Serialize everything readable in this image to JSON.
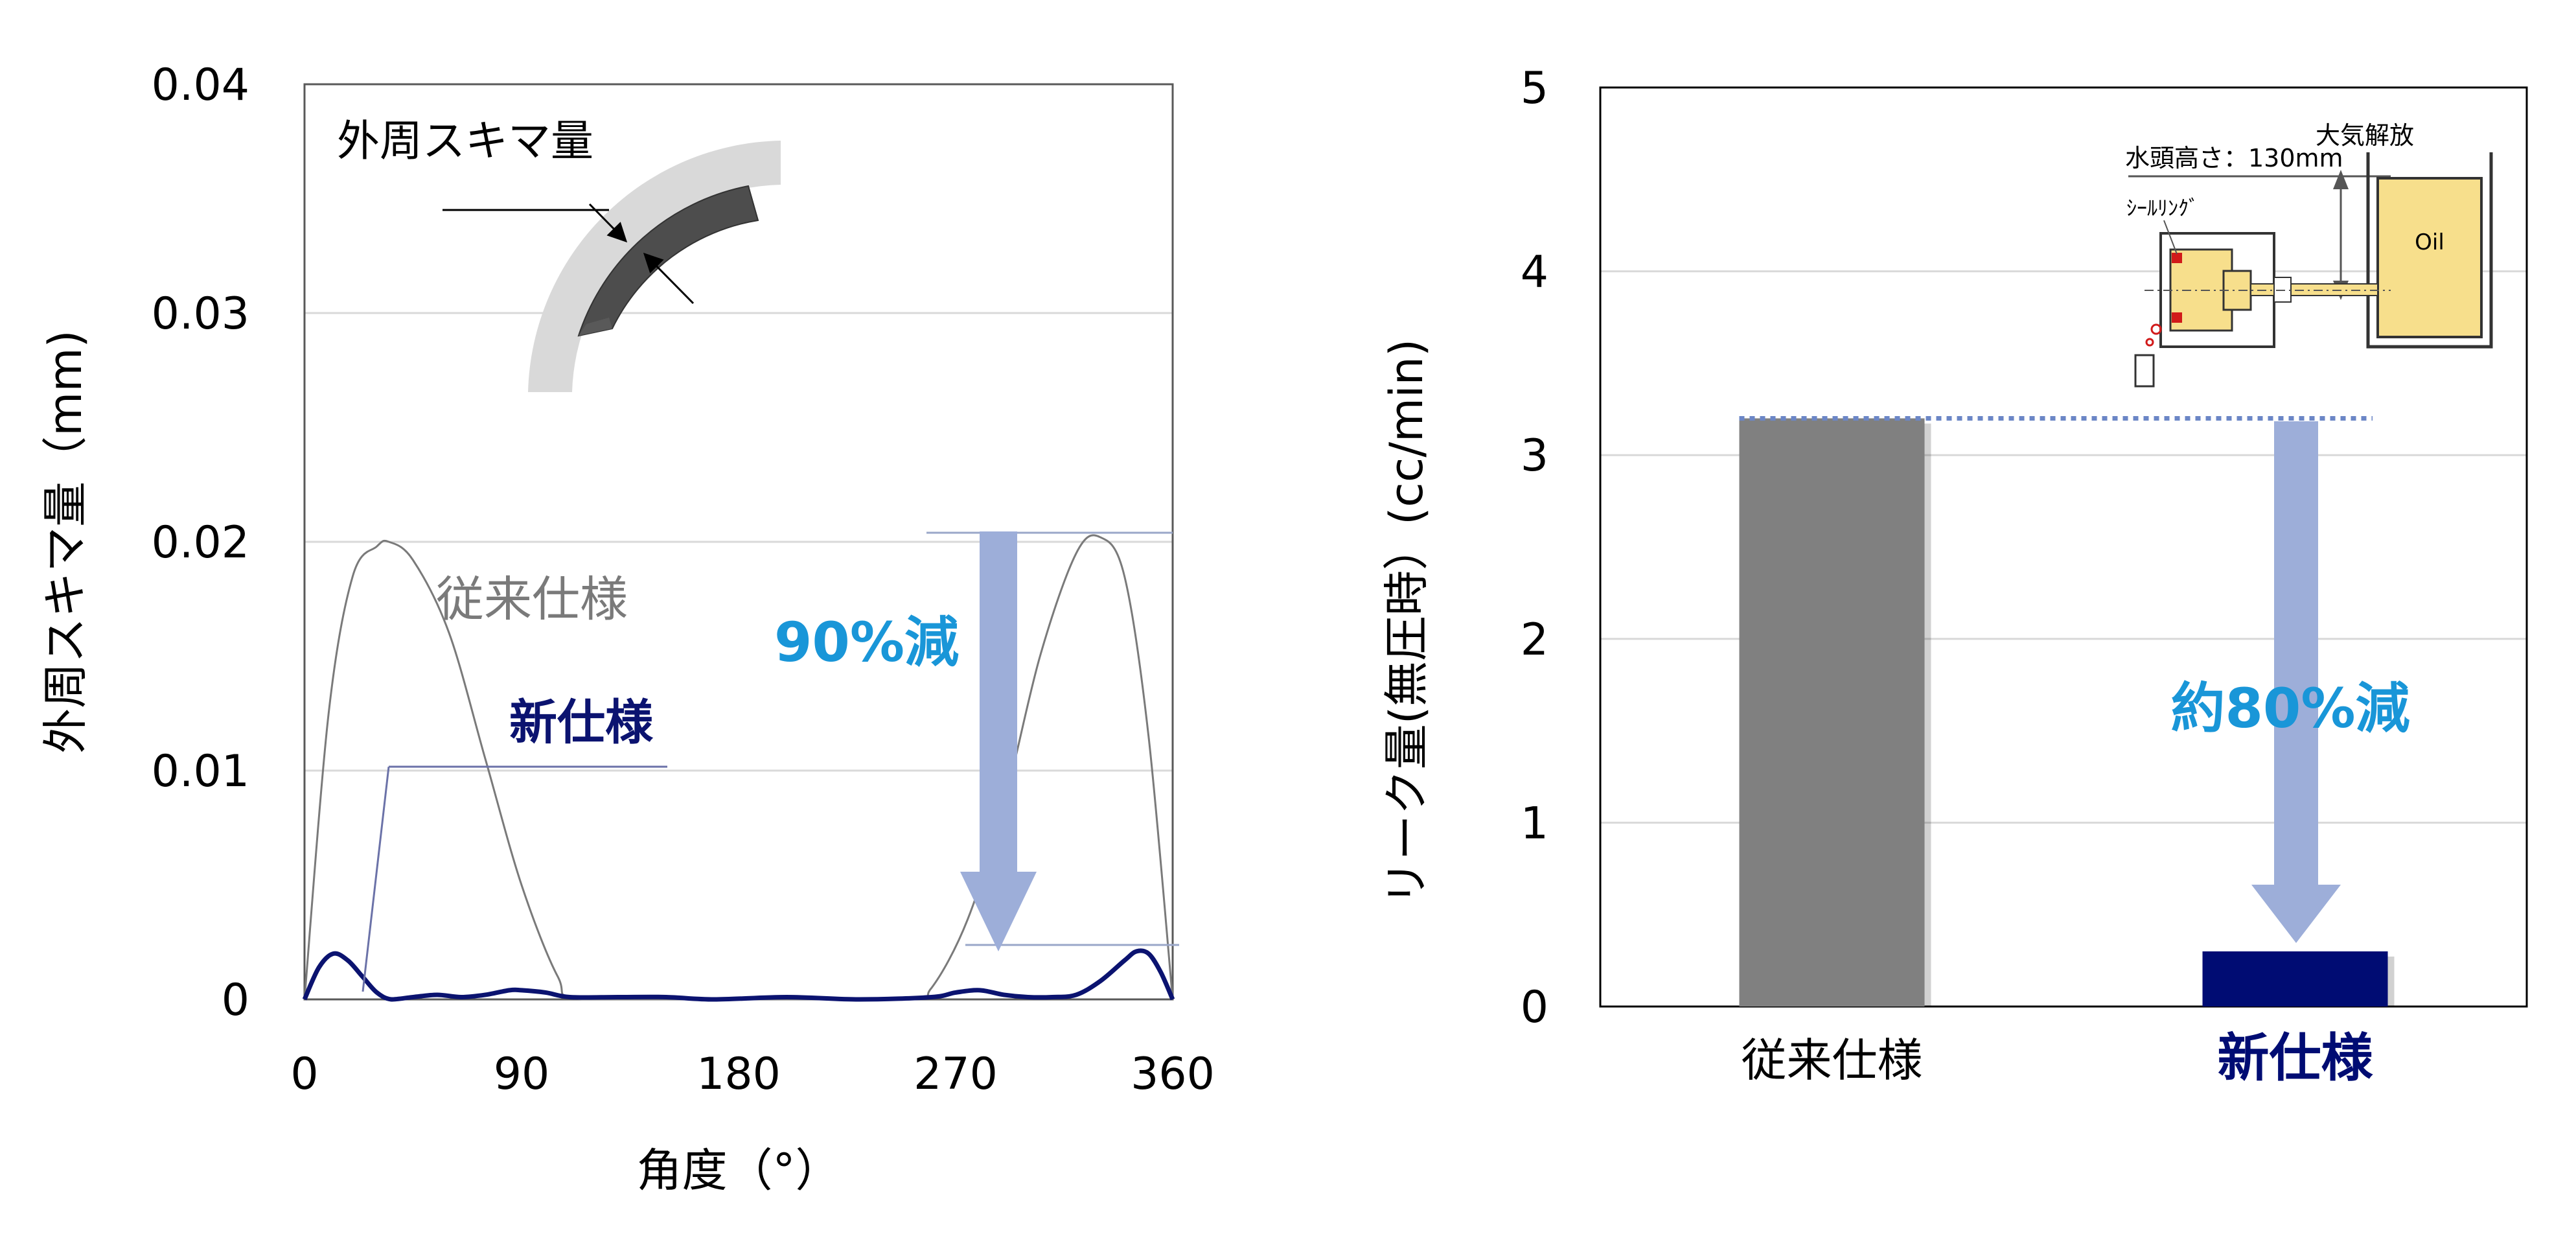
{
  "colors": {
    "conventional_line": "#7a7a7a",
    "new_line": "#0b1370",
    "arrow": "#9daed9",
    "accent_text": "#1996d8",
    "bar_conventional": "#808080",
    "bar_new": "#000c73",
    "grid": "#d9d9d9",
    "oil": "#f7df8c",
    "seal_ring": "#d11a1a"
  },
  "chart_data": [
    {
      "type": "line",
      "xlabel": "角度（°）",
      "ylabel": "外周スキマ量（mm)",
      "xlim": [
        0,
        360
      ],
      "ylim": [
        0,
        0.04
      ],
      "x_ticks": [
        "0",
        "90",
        "180",
        "270",
        "360"
      ],
      "y_ticks": [
        "0",
        "0.01",
        "0.02",
        "0.03",
        "0.04"
      ],
      "grid": "horizontal",
      "series": [
        {
          "name": "従来仕様",
          "x": [
            0,
            10,
            20,
            30,
            35,
            45,
            60,
            75,
            90,
            105,
            115,
            180,
            250,
            260,
            275,
            290,
            305,
            320,
            330,
            340,
            350,
            360
          ],
          "y": [
            0,
            0.0125,
            0.0185,
            0.0198,
            0.02,
            0.0192,
            0.016,
            0.0105,
            0.005,
            0.001,
            0,
            0,
            0,
            0.0005,
            0.0035,
            0.0085,
            0.015,
            0.0195,
            0.0202,
            0.0185,
            0.0115,
            0
          ]
        },
        {
          "name": "新仕様",
          "x": [
            0,
            6,
            12,
            18,
            24,
            30,
            36,
            45,
            55,
            65,
            75,
            85,
            90,
            100,
            110,
            130,
            150,
            170,
            200,
            230,
            260,
            270,
            280,
            290,
            300,
            310,
            320,
            330,
            340,
            345,
            350,
            355,
            360
          ],
          "y": [
            0,
            0.0014,
            0.002,
            0.0017,
            0.001,
            0.0003,
            0,
            0.0001,
            0.0002,
            0.0001,
            0.0002,
            0.0004,
            0.0004,
            0.0003,
            0.0001,
            0.0001,
            0.0001,
            0,
            0.0001,
            0,
            0.0001,
            0.0003,
            0.0004,
            0.0002,
            0.0001,
            0.0001,
            0.0002,
            0.0008,
            0.0017,
            0.0021,
            0.002,
            0.0012,
            0
          ]
        }
      ],
      "annotations": {
        "inset_title": "外周スキマ量",
        "reduction_text": "90%減"
      }
    },
    {
      "type": "bar",
      "categories": [
        "従来仕様",
        "新仕様"
      ],
      "values": [
        3.2,
        0.3
      ],
      "ylabel": "リーク量(無圧時）(cc/min)",
      "ylim": [
        0,
        5
      ],
      "y_ticks": [
        "0",
        "1",
        "2",
        "3",
        "4",
        "5"
      ],
      "grid": "horizontal",
      "annotations": {
        "reduction_text": "約80%減",
        "inset_labels": {
          "head": "水頭高さ：130mm",
          "open": "大気解放",
          "seal": "ｼｰﾙﾘﾝｸﾞ",
          "oil": "Oil"
        }
      }
    }
  ]
}
